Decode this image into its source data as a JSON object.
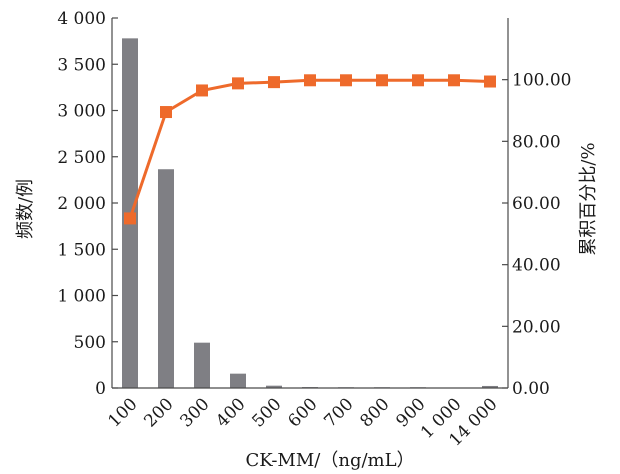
{
  "chart_data": {
    "type": "bar+line",
    "categories": [
      "100",
      "200",
      "300",
      "400",
      "500",
      "600",
      "700",
      "800",
      "900",
      "1 000",
      "14 000"
    ],
    "series": [
      {
        "type": "bar",
        "axis": "left",
        "values": [
          3780,
          2365,
          490,
          155,
          25,
          10,
          8,
          8,
          8,
          3,
          22
        ]
      },
      {
        "type": "line",
        "axis": "right",
        "values": [
          55.0,
          89.5,
          96.5,
          98.8,
          99.2,
          99.8,
          99.8,
          99.8,
          99.8,
          99.8,
          99.4
        ]
      }
    ],
    "xlabel": "CK-MM/（ng/mL）",
    "ylabel_left": "频数/例",
    "ylabel_right": "累积百分比/%",
    "ylim_left": [
      0,
      4000
    ],
    "ylim_right": [
      0,
      120
    ],
    "yticks_left": [
      "0",
      "500",
      "1 000",
      "1 500",
      "2 000",
      "2 500",
      "3 000",
      "3 500",
      "4 000"
    ],
    "yticks_right": [
      "0.00",
      "20.00",
      "40.00",
      "60.00",
      "80.00",
      "100.00"
    ],
    "grid": false,
    "colors": {
      "bar": "#7f7f84",
      "line": "#ee6a2b",
      "axis": "#4a4a4a"
    }
  }
}
